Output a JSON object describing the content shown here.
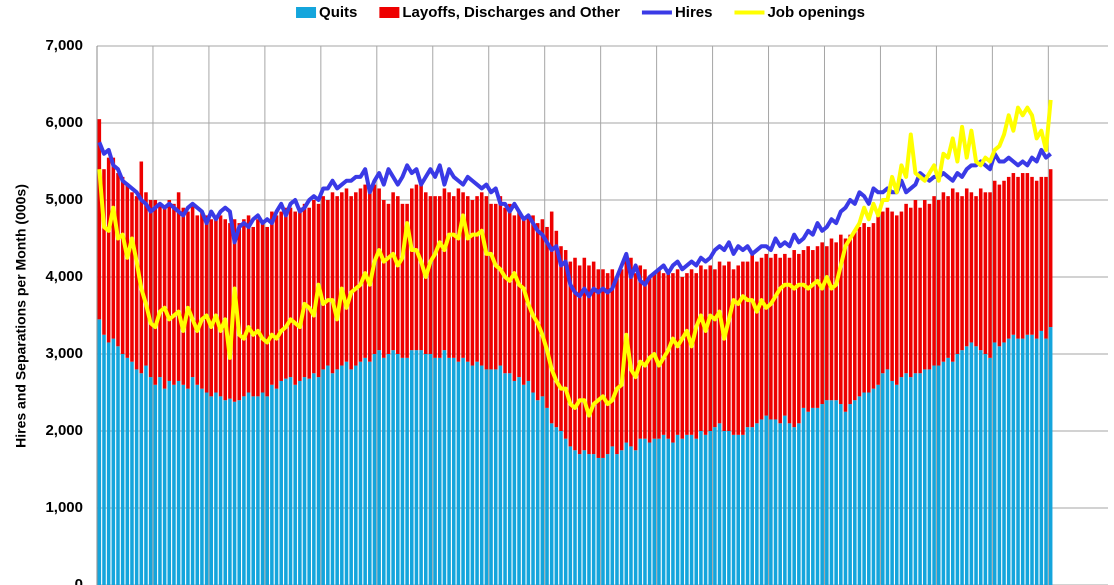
{
  "chart_data": {
    "type": "bar",
    "stacked": true,
    "y_label": "Hires and Separations per Month (000s)",
    "categories": [
      null,
      null,
      null,
      null,
      null,
      null,
      null,
      null,
      null,
      null,
      null,
      null,
      null,
      null,
      null,
      null,
      null,
      null,
      null,
      null,
      null,
      null,
      null,
      null,
      null,
      null,
      null,
      null,
      null,
      null,
      null,
      null,
      null,
      null,
      null,
      null,
      null,
      null,
      null,
      null,
      null,
      null,
      null,
      null,
      null,
      null,
      null,
      null,
      null,
      null,
      null,
      null,
      null,
      null,
      null,
      null,
      null,
      null,
      null,
      null,
      null,
      null,
      null,
      null,
      null,
      null,
      null,
      null,
      null,
      null,
      null,
      null,
      null,
      null,
      null,
      null,
      null,
      null,
      null,
      null,
      null,
      null,
      null,
      null,
      null,
      null,
      null,
      null,
      null,
      null,
      null,
      null,
      null,
      null,
      null,
      null,
      null,
      null,
      null,
      null,
      null,
      null,
      null,
      null,
      null,
      null,
      null,
      null,
      null,
      null,
      null,
      null,
      null,
      null,
      null,
      null,
      null,
      null,
      null,
      null,
      null,
      null,
      null,
      null,
      null,
      null,
      null,
      null,
      null,
      null,
      null,
      null,
      null,
      null,
      null,
      null,
      null,
      null,
      null,
      null,
      null,
      null,
      null,
      null,
      null,
      null,
      null,
      null,
      null,
      null,
      null,
      null,
      null,
      null,
      null,
      null,
      null,
      null,
      null,
      null,
      null,
      null,
      null,
      null,
      null,
      null,
      null,
      null,
      null,
      null,
      null,
      null,
      null,
      null,
      null,
      null,
      null,
      null,
      null,
      null,
      null,
      null,
      null,
      null,
      null,
      null,
      null,
      null,
      null,
      null,
      null,
      null,
      null,
      null,
      null,
      null,
      null,
      null,
      null,
      null,
      null,
      null,
      null,
      null,
      null
    ],
    "series": [
      {
        "name": "Quits",
        "type": "bar",
        "color": "#14a5dc",
        "values": [
          3450,
          3250,
          3150,
          3200,
          3100,
          3000,
          2950,
          2900,
          2800,
          2750,
          2850,
          2700,
          2600,
          2700,
          2550,
          2650,
          2600,
          2650,
          2600,
          2550,
          2700,
          2600,
          2550,
          2500,
          2450,
          2500,
          2450,
          2400,
          2420,
          2380,
          2400,
          2450,
          2500,
          2450,
          2450,
          2500,
          2450,
          2600,
          2550,
          2650,
          2680,
          2700,
          2600,
          2650,
          2700,
          2680,
          2750,
          2700,
          2800,
          2850,
          2750,
          2800,
          2850,
          2900,
          2800,
          2850,
          2900,
          2950,
          2900,
          3000,
          3050,
          2950,
          3000,
          3050,
          3000,
          2950,
          2950,
          3050,
          3050,
          3050,
          3000,
          3000,
          2950,
          2950,
          3050,
          2950,
          2950,
          2900,
          2950,
          2900,
          2850,
          2900,
          2850,
          2800,
          2800,
          2800,
          2850,
          2750,
          2750,
          2650,
          2700,
          2600,
          2650,
          2500,
          2400,
          2450,
          2300,
          2100,
          2050,
          2000,
          1900,
          1800,
          1750,
          1700,
          1750,
          1700,
          1700,
          1650,
          1650,
          1700,
          1800,
          1700,
          1750,
          1850,
          1800,
          1750,
          1900,
          1900,
          1850,
          1900,
          1900,
          1950,
          1900,
          1850,
          1950,
          1900,
          1950,
          1950,
          1900,
          2000,
          1950,
          2000,
          2050,
          2100,
          2000,
          2000,
          1950,
          1950,
          1950,
          2050,
          2050,
          2100,
          2150,
          2200,
          2150,
          2150,
          2100,
          2200,
          2100,
          2050,
          2100,
          2300,
          2250,
          2300,
          2300,
          2350,
          2400,
          2400,
          2400,
          2350,
          2250,
          2350,
          2400,
          2450,
          2500,
          2500,
          2550,
          2600,
          2750,
          2800,
          2650,
          2600,
          2700,
          2750,
          2700,
          2750,
          2750,
          2800,
          2800,
          2850,
          2850,
          2900,
          2950,
          2900,
          3000,
          3050,
          3100,
          3150,
          3100,
          3050,
          3000,
          2950,
          3150,
          3100,
          3150,
          3200,
          3250,
          3200,
          3200,
          3250,
          3250,
          3200,
          3300,
          3200,
          3350
        ]
      },
      {
        "name": "Layoffs, Discharges and Other",
        "type": "bar",
        "color": "#ee0000",
        "values": [
          2600,
          2150,
          2400,
          2350,
          2250,
          2300,
          2250,
          2200,
          2250,
          2750,
          2250,
          2300,
          2400,
          2250,
          2350,
          2350,
          2350,
          2450,
          2300,
          2300,
          2250,
          2200,
          2300,
          2300,
          2300,
          2250,
          2350,
          2350,
          2280,
          2370,
          2300,
          2300,
          2300,
          2200,
          2300,
          2200,
          2200,
          2250,
          2250,
          2200,
          2220,
          2200,
          2250,
          2250,
          2250,
          2220,
          2250,
          2250,
          2250,
          2150,
          2350,
          2250,
          2250,
          2250,
          2250,
          2250,
          2250,
          2250,
          2200,
          2200,
          2100,
          2050,
          1950,
          2050,
          2050,
          2000,
          2000,
          2100,
          2150,
          2150,
          2100,
          2050,
          2100,
          2100,
          2100,
          2150,
          2100,
          2250,
          2150,
          2150,
          2150,
          2150,
          2250,
          2250,
          2150,
          2150,
          2200,
          2150,
          2200,
          2150,
          2150,
          2150,
          2150,
          2300,
          2300,
          2300,
          2350,
          2750,
          2550,
          2400,
          2450,
          2400,
          2500,
          2450,
          2500,
          2450,
          2500,
          2450,
          2450,
          2350,
          2300,
          2300,
          2350,
          2450,
          2450,
          2300,
          2250,
          2200,
          2150,
          2150,
          2200,
          2100,
          2200,
          2200,
          2150,
          2100,
          2100,
          2150,
          2150,
          2150,
          2150,
          2150,
          2050,
          2100,
          2150,
          2200,
          2150,
          2200,
          2250,
          2150,
          2250,
          2100,
          2100,
          2100,
          2100,
          2150,
          2150,
          2100,
          2150,
          2300,
          2200,
          2050,
          2150,
          2050,
          2100,
          2100,
          2000,
          2100,
          2050,
          2200,
          2250,
          2200,
          2200,
          2200,
          2200,
          2150,
          2150,
          2200,
          2100,
          2100,
          2200,
          2200,
          2150,
          2200,
          2200,
          2250,
          2150,
          2200,
          2150,
          2200,
          2150,
          2200,
          2100,
          2250,
          2100,
          2000,
          2050,
          1950,
          1950,
          2100,
          2100,
          2150,
          2100,
          2100,
          2100,
          2100,
          2100,
          2100,
          2150,
          2100,
          2050,
          2050,
          2000,
          2100,
          2050
        ]
      },
      {
        "name": "Hires",
        "type": "line",
        "color": "#3a3ae6",
        "values": [
          5750,
          5600,
          5650,
          5450,
          5400,
          5250,
          5200,
          5150,
          5100,
          5000,
          4950,
          4850,
          4900,
          4950,
          4900,
          4950,
          4900,
          4850,
          4800,
          4900,
          4950,
          4900,
          4850,
          4700,
          4850,
          4750,
          4850,
          4900,
          4850,
          4450,
          4650,
          4700,
          4650,
          4750,
          4800,
          4700,
          4750,
          4700,
          4850,
          4950,
          4800,
          4950,
          5000,
          4850,
          4900,
          5000,
          5050,
          5000,
          5150,
          5150,
          5250,
          5150,
          5200,
          5250,
          5250,
          5300,
          5300,
          5400,
          5100,
          5250,
          5350,
          5200,
          5400,
          5300,
          5200,
          5300,
          5450,
          5350,
          5400,
          5200,
          5300,
          5400,
          5300,
          5450,
          5200,
          5400,
          5300,
          5250,
          5200,
          5300,
          5250,
          5200,
          5150,
          5200,
          5100,
          5150,
          4950,
          4950,
          4850,
          4950,
          4850,
          4750,
          4800,
          4700,
          4600,
          4550,
          4450,
          4350,
          4400,
          4150,
          4200,
          3900,
          3800,
          3750,
          3850,
          3750,
          3850,
          3800,
          3850,
          3800,
          3850,
          4000,
          4150,
          4300,
          4000,
          4150,
          3950,
          3900,
          4000,
          4050,
          4100,
          4150,
          4050,
          4150,
          4200,
          4100,
          4150,
          4200,
          4150,
          4250,
          4200,
          4250,
          4350,
          4400,
          4350,
          4450,
          4300,
          4400,
          4350,
          4400,
          4300,
          4350,
          4400,
          4400,
          4350,
          4500,
          4400,
          4450,
          4400,
          4550,
          4450,
          4500,
          4600,
          4550,
          4700,
          4600,
          4650,
          4750,
          4700,
          4850,
          4900,
          5000,
          4950,
          5100,
          5050,
          4950,
          5150,
          5100,
          5100,
          5150,
          5100,
          5100,
          5250,
          5100,
          5150,
          5200,
          5350,
          5300,
          5250,
          5300,
          5300,
          5350,
          5300,
          5250,
          5350,
          5300,
          5400,
          5450,
          5450,
          5500,
          5450,
          5400,
          5600,
          5500,
          5500,
          5550,
          5500,
          5450,
          5500,
          5450,
          5550,
          5500,
          5650,
          5550,
          5600
        ]
      },
      {
        "name": "Job openings",
        "type": "line",
        "color": "#ffff00",
        "values": [
          5400,
          4650,
          4600,
          4900,
          4500,
          4550,
          4250,
          4500,
          4200,
          3850,
          3650,
          3400,
          3350,
          3550,
          3600,
          3450,
          3500,
          3550,
          3300,
          3600,
          3450,
          3300,
          3450,
          3500,
          3350,
          3500,
          3300,
          3450,
          2950,
          3850,
          3250,
          3200,
          3350,
          3250,
          3300,
          3200,
          3150,
          3250,
          3200,
          3300,
          3350,
          3450,
          3400,
          3350,
          3650,
          3600,
          3500,
          3900,
          3650,
          3700,
          3700,
          3450,
          3850,
          3600,
          3800,
          3850,
          3900,
          4050,
          3900,
          4200,
          4350,
          4200,
          4250,
          4300,
          4150,
          4250,
          4700,
          4350,
          4350,
          4200,
          4000,
          4200,
          4300,
          4450,
          4350,
          4550,
          4550,
          4500,
          4800,
          4500,
          4550,
          4550,
          4600,
          4300,
          4300,
          4150,
          4100,
          4000,
          3950,
          4050,
          3900,
          3850,
          3650,
          3500,
          3400,
          3250,
          3050,
          2800,
          2650,
          2550,
          2550,
          2350,
          2300,
          2400,
          2400,
          2200,
          2350,
          2400,
          2450,
          2350,
          2400,
          2550,
          2600,
          3250,
          2800,
          2700,
          2900,
          2850,
          2950,
          3000,
          2850,
          2950,
          3050,
          3200,
          3100,
          3200,
          3300,
          3100,
          3350,
          3500,
          3300,
          3500,
          3450,
          3550,
          3200,
          3450,
          3700,
          3650,
          3750,
          3700,
          3700,
          3550,
          3700,
          3600,
          3650,
          3750,
          3850,
          3900,
          3900,
          3850,
          3900,
          3900,
          3850,
          3900,
          3950,
          3850,
          4000,
          3850,
          3900,
          4150,
          4400,
          4500,
          4600,
          4700,
          4900,
          4750,
          4950,
          4800,
          5000,
          5000,
          5300,
          5100,
          5450,
          5300,
          5850,
          5350,
          5300,
          5250,
          5350,
          5450,
          5250,
          5600,
          5550,
          5800,
          5500,
          5950,
          5550,
          5900,
          5500,
          5450,
          5550,
          5500,
          5650,
          5700,
          5850,
          6100,
          5900,
          6200,
          6100,
          6200,
          6100,
          5800,
          5900,
          5650,
          6300
        ]
      }
    ],
    "ylim": [
      0,
      7000
    ],
    "yticks": [
      {
        "value": 0,
        "label": "0"
      },
      {
        "value": 1000,
        "label": "1,000"
      },
      {
        "value": 2000,
        "label": "2,000"
      },
      {
        "value": 3000,
        "label": "3,000"
      },
      {
        "value": 4000,
        "label": "4,000"
      },
      {
        "value": 5000,
        "label": "5,000"
      },
      {
        "value": 6000,
        "label": "6,000"
      },
      {
        "value": 7000,
        "label": "7,000"
      }
    ],
    "grid": true,
    "legend": "top"
  }
}
